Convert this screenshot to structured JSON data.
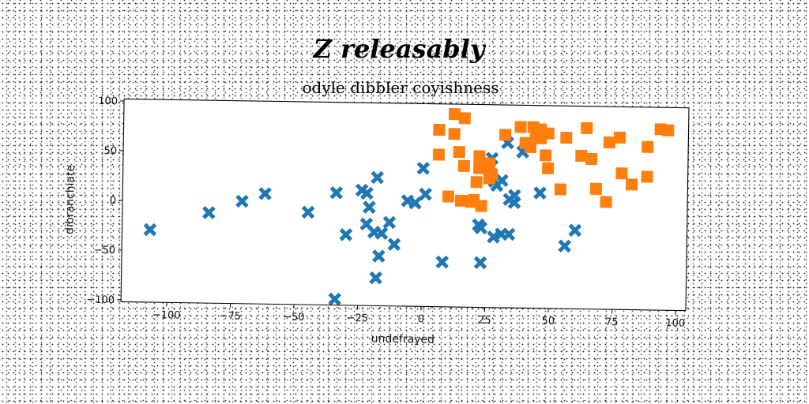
{
  "chart_data": {
    "type": "scatter",
    "title": "Z releasably",
    "subtitle": "odyle dibbler coyishness",
    "xlabel": "undefrayed",
    "ylabel": "dibranchiate",
    "xlim": [
      -118,
      104
    ],
    "ylim": [
      -102,
      102
    ],
    "x_ticks": [
      -100,
      -75,
      -50,
      -25,
      0,
      25,
      50,
      75,
      100
    ],
    "y_ticks": [
      -100,
      -50,
      0,
      50,
      100
    ],
    "x_tick_labels": [
      "−100",
      "−75",
      "−50",
      "−25",
      "0",
      "25",
      "50",
      "75",
      "100"
    ],
    "y_tick_labels": [
      "−100",
      "−50",
      "0",
      "50",
      "100"
    ],
    "grid": false,
    "legend": "none",
    "series": [
      {
        "marker": "x",
        "color": "#1f77b4",
        "points": [
          [
            -107,
            -29
          ],
          [
            -84,
            -11
          ],
          [
            -71,
            1
          ],
          [
            -62,
            9
          ],
          [
            -45,
            -9
          ],
          [
            -34,
            11
          ],
          [
            -30,
            -31
          ],
          [
            -34,
            -96
          ],
          [
            -24,
            14
          ],
          [
            -22,
            11
          ],
          [
            -21,
            -3
          ],
          [
            -22,
            -20
          ],
          [
            -18,
            27
          ],
          [
            -19,
            -28
          ],
          [
            -16,
            -29
          ],
          [
            -17,
            -52
          ],
          [
            -18,
            -74
          ],
          [
            -13,
            -18
          ],
          [
            -11,
            -40
          ],
          [
            -6,
            4
          ],
          [
            -3,
            2
          ],
          [
            0,
            37
          ],
          [
            1,
            11
          ],
          [
            8,
            -57
          ],
          [
            23,
            -57
          ],
          [
            22,
            -19
          ],
          [
            23,
            -22
          ],
          [
            25,
            44
          ],
          [
            27,
            48
          ],
          [
            28,
            -31
          ],
          [
            28,
            25
          ],
          [
            29,
            21
          ],
          [
            31,
            26
          ],
          [
            31,
            -28
          ],
          [
            34,
            -28
          ],
          [
            33,
            64
          ],
          [
            34,
            7
          ],
          [
            36,
            4
          ],
          [
            36,
            11
          ],
          [
            39,
            55
          ],
          [
            46,
            14
          ],
          [
            56,
            -39
          ],
          [
            60,
            -23
          ]
        ]
      },
      {
        "marker": "s",
        "color": "#ff7f0e",
        "points": [
          [
            6,
            76
          ],
          [
            12,
            92
          ],
          [
            12,
            72
          ],
          [
            14,
            54
          ],
          [
            16,
            40
          ],
          [
            16,
            88
          ],
          [
            6,
            51
          ],
          [
            10,
            9
          ],
          [
            15,
            5
          ],
          [
            19,
            4
          ],
          [
            20,
            6
          ],
          [
            23,
            0
          ],
          [
            21,
            24
          ],
          [
            22,
            38
          ],
          [
            22,
            50
          ],
          [
            26,
            28
          ],
          [
            26,
            36
          ],
          [
            26,
            43
          ],
          [
            27,
            32
          ],
          [
            32,
            72
          ],
          [
            38,
            80
          ],
          [
            40,
            64
          ],
          [
            42,
            60
          ],
          [
            43,
            80
          ],
          [
            44,
            72
          ],
          [
            46,
            78
          ],
          [
            46,
            69
          ],
          [
            48,
            52
          ],
          [
            49,
            74
          ],
          [
            49,
            39
          ],
          [
            54,
            18
          ],
          [
            56,
            70
          ],
          [
            62,
            52
          ],
          [
            64,
            80
          ],
          [
            66,
            49
          ],
          [
            68,
            19
          ],
          [
            72,
            6
          ],
          [
            73,
            66
          ],
          [
            77,
            71
          ],
          [
            78,
            35
          ],
          [
            82,
            24
          ],
          [
            88,
            32
          ],
          [
            88,
            62
          ],
          [
            93,
            80
          ],
          [
            96,
            79
          ]
        ]
      }
    ]
  }
}
